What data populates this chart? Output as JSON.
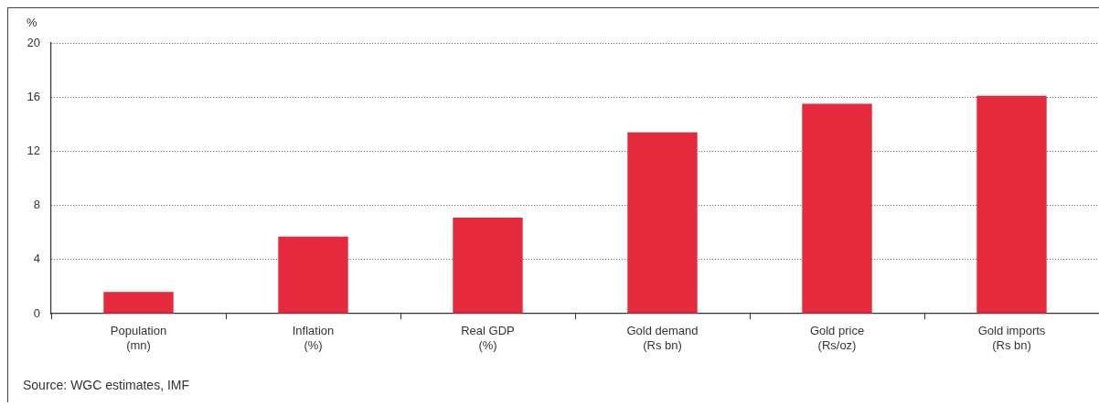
{
  "chart_data": {
    "type": "bar",
    "categories": [
      "Population\n(mn)",
      "Inflation\n(%)",
      "Real GDP\n(%)",
      "Gold demand\n(Rs bn)",
      "Gold price\n(Rs/oz)",
      "Gold imports\n(Rs bn)"
    ],
    "values": [
      1.6,
      5.7,
      7.1,
      13.4,
      15.5,
      16.1
    ],
    "color": "#e52a3d",
    "ylabel": "%",
    "ylim": [
      0,
      20
    ],
    "yticks": [
      0,
      4,
      8,
      12,
      16,
      20
    ],
    "grid": "y",
    "annotations": [
      "Source: WGC estimates, IMF"
    ]
  }
}
